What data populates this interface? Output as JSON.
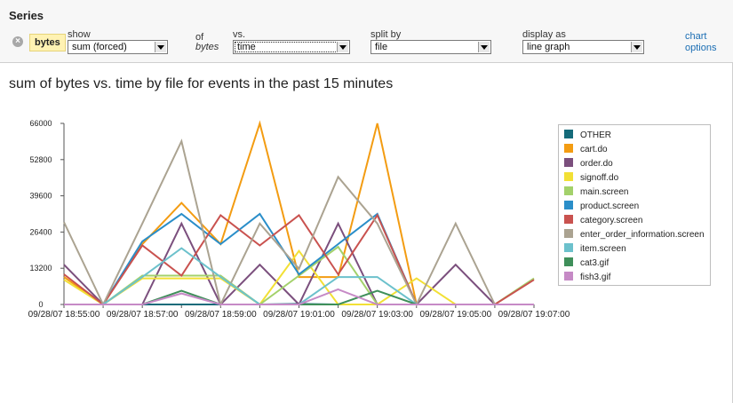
{
  "panel": {
    "title": "Series",
    "field_label": "bytes",
    "show_label": "show",
    "show_value": "sum (forced)",
    "of_label": "of",
    "of_field": "bytes",
    "vs_label": "vs.",
    "vs_value": "time",
    "split_label": "split by",
    "split_value": "file",
    "display_label": "display as",
    "display_value": "line graph",
    "chart_options_line1": "chart",
    "chart_options_line2": "options"
  },
  "chart_data": {
    "type": "line",
    "title": "sum of bytes vs. time by file for events in the past 15 minutes",
    "xlabel": "",
    "ylabel": "",
    "ylim": [
      0,
      66000
    ],
    "yticks": [
      0,
      13200,
      26400,
      39600,
      52800,
      66000
    ],
    "ytick_labels": [
      "0",
      "13200",
      "26400",
      "39600",
      "52800",
      "66000"
    ],
    "x_tick_labels": [
      "09/28/07 18:55:00",
      "09/28/07 18:57:00",
      "09/28/07 18:59:00",
      "09/28/07 19:01:00",
      "09/28/07 19:03:00",
      "09/28/07 19:05:00",
      "09/28/07 19:07:00"
    ],
    "x": [
      "18:55:00",
      "18:56:00",
      "18:57:00",
      "18:58:00",
      "18:59:00",
      "19:00:00",
      "19:01:00",
      "19:02:00",
      "19:03:00",
      "19:04:00",
      "19:05:00",
      "19:06:00",
      "19:07:00"
    ],
    "legend_position": "right",
    "grid": false,
    "series": [
      {
        "name": "OTHER",
        "color": "#156b7a",
        "values": [
          0,
          0,
          0,
          0,
          0,
          0,
          200,
          0,
          0,
          0,
          0,
          0,
          0
        ]
      },
      {
        "name": "cart.do",
        "color": "#f39c12",
        "values": [
          10000,
          0,
          22000,
          37000,
          22000,
          66000,
          10000,
          10000,
          66000,
          0,
          0,
          0,
          0
        ]
      },
      {
        "name": "order.do",
        "color": "#7b4f7d",
        "values": [
          14500,
          0,
          0,
          29500,
          0,
          14500,
          0,
          29500,
          0,
          0,
          14500,
          0,
          0
        ]
      },
      {
        "name": "signoff.do",
        "color": "#f2e035",
        "values": [
          9000,
          0,
          9500,
          9500,
          9500,
          0,
          19500,
          0,
          0,
          9500,
          0,
          0,
          0
        ]
      },
      {
        "name": "main.screen",
        "color": "#a3d16b",
        "values": [
          0,
          0,
          10500,
          10500,
          10500,
          0,
          10500,
          21000,
          0,
          0,
          0,
          0,
          9500
        ]
      },
      {
        "name": "product.screen",
        "color": "#2a8ec9",
        "values": [
          0,
          0,
          23000,
          33000,
          22000,
          33000,
          11000,
          22000,
          33000,
          0,
          0,
          0,
          0
        ]
      },
      {
        "name": "category.screen",
        "color": "#c9524f",
        "values": [
          11000,
          0,
          21500,
          10500,
          32500,
          21500,
          32500,
          11000,
          32500,
          0,
          0,
          0,
          9000
        ]
      },
      {
        "name": "enter_order_information.screen",
        "color": "#aba391",
        "values": [
          30000,
          0,
          29500,
          59500,
          0,
          29500,
          13000,
          46500,
          29500,
          0,
          29500,
          0,
          0
        ]
      },
      {
        "name": "item.screen",
        "color": "#6cc1cc",
        "values": [
          0,
          0,
          10000,
          20500,
          10000,
          0,
          0,
          10000,
          10000,
          0,
          0,
          0,
          0
        ]
      },
      {
        "name": "cat3.gif",
        "color": "#3f8f5a",
        "values": [
          0,
          0,
          0,
          5000,
          0,
          0,
          0,
          0,
          5000,
          0,
          0,
          0,
          0
        ]
      },
      {
        "name": "fish3.gif",
        "color": "#c68ac6",
        "values": [
          0,
          0,
          0,
          4000,
          0,
          0,
          0,
          5500,
          0,
          0,
          0,
          0,
          0
        ]
      }
    ]
  }
}
